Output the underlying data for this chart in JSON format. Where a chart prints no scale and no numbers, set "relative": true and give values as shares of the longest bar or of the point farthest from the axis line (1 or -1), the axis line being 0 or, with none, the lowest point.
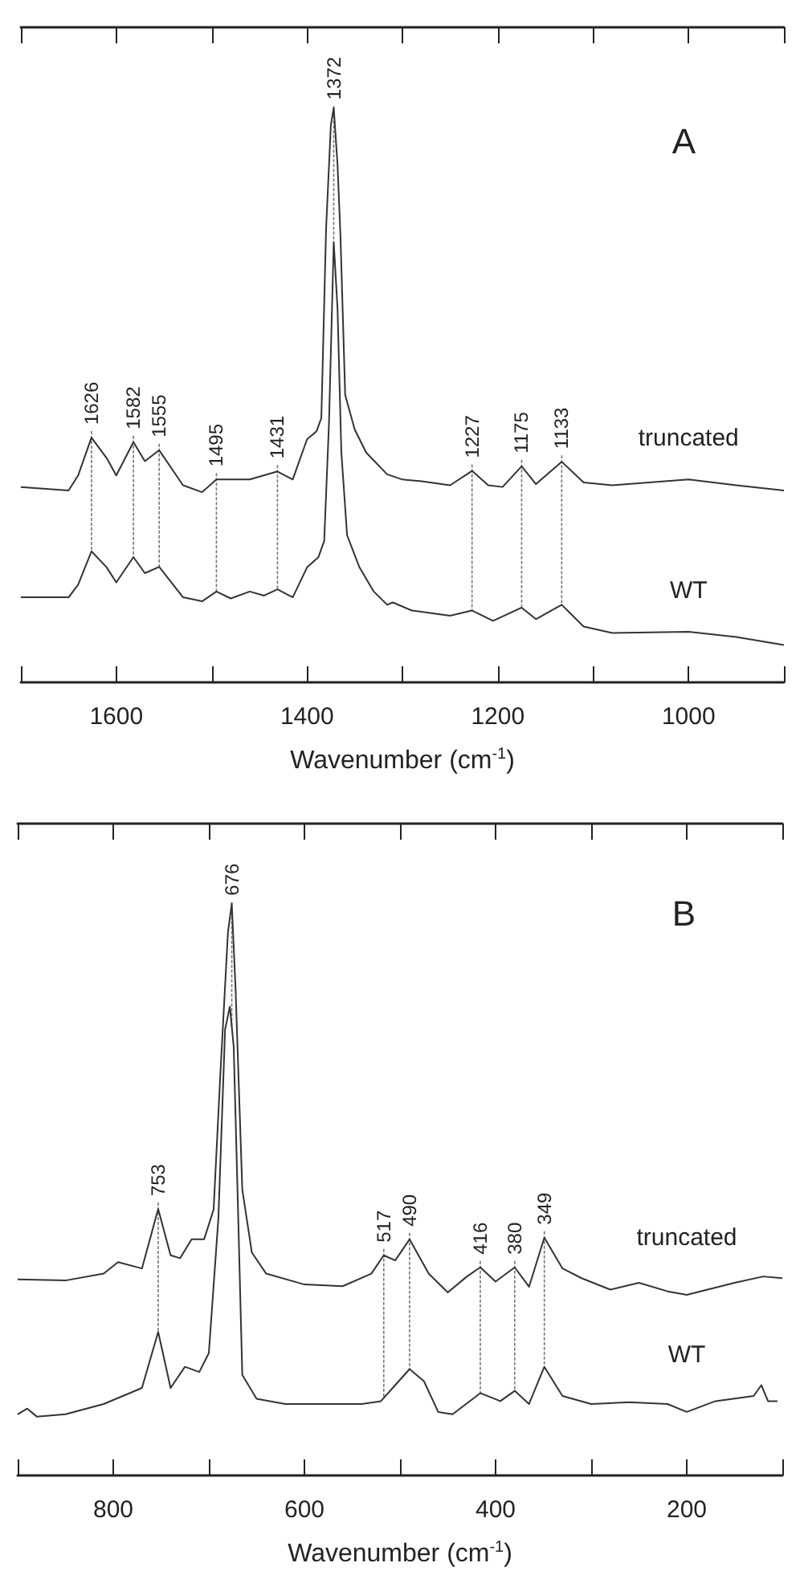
{
  "chart_data": [
    {
      "type": "line",
      "title": "A",
      "xlabel": "Wavenumber (cm$^{-1}$)",
      "relative": true,
      "tick_labels": "x",
      "xlim": [
        1700,
        900
      ],
      "xticks": [
        {
          "value": 1700,
          "label": null
        },
        1600,
        {
          "value": 1500,
          "label": null
        },
        1400,
        {
          "value": 1300,
          "label": null
        },
        1200,
        {
          "value": 1100,
          "label": null
        },
        1000,
        {
          "value": 900,
          "label": null
        }
      ],
      "series": [
        {
          "name": "truncated",
          "color": "#333333",
          "x": [
            1700,
            1650,
            1640,
            1626,
            1610,
            1600,
            1582,
            1570,
            1555,
            1530,
            1510,
            1495,
            1460,
            1431,
            1415,
            1400,
            1390,
            1385,
            1380,
            1375,
            1372,
            1368,
            1365,
            1360,
            1350,
            1338,
            1316,
            1300,
            1280,
            1250,
            1227,
            1210,
            1195,
            1175,
            1160,
            1133,
            1110,
            1080,
            1000,
            950,
            900
          ],
          "values": [
            0.34,
            0.334,
            0.36,
            0.426,
            0.39,
            0.36,
            0.418,
            0.385,
            0.404,
            0.343,
            0.331,
            0.353,
            0.353,
            0.367,
            0.353,
            0.423,
            0.437,
            0.46,
            0.79,
            0.97,
            1.0,
            0.9,
            0.78,
            0.5,
            0.44,
            0.4,
            0.362,
            0.353,
            0.35,
            0.343,
            0.368,
            0.343,
            0.34,
            0.376,
            0.345,
            0.384,
            0.348,
            0.343,
            0.353,
            0.343,
            0.334
          ]
        },
        {
          "name": "WT",
          "color": "#333333",
          "x": [
            1700,
            1650,
            1640,
            1626,
            1610,
            1600,
            1582,
            1570,
            1555,
            1530,
            1510,
            1495,
            1480,
            1460,
            1445,
            1431,
            1415,
            1400,
            1388,
            1382,
            1377,
            1372,
            1368,
            1364,
            1358,
            1345,
            1330,
            1316,
            1310,
            1290,
            1250,
            1227,
            1205,
            1175,
            1160,
            1133,
            1110,
            1080,
            1000,
            950,
            900
          ],
          "values": [
            0.148,
            0.148,
            0.17,
            0.228,
            0.2,
            0.174,
            0.218,
            0.19,
            0.201,
            0.148,
            0.141,
            0.158,
            0.146,
            0.158,
            0.151,
            0.162,
            0.148,
            0.2,
            0.218,
            0.246,
            0.45,
            0.766,
            0.65,
            0.4,
            0.256,
            0.2,
            0.158,
            0.135,
            0.139,
            0.125,
            0.116,
            0.125,
            0.107,
            0.13,
            0.11,
            0.135,
            0.097,
            0.086,
            0.088,
            0.079,
            0.065
          ]
        }
      ],
      "annotations": [
        {
          "text": "1626",
          "x": 1626,
          "y": 0.426
        },
        {
          "text": "1582",
          "x": 1582,
          "y": 0.418
        },
        {
          "text": "1555",
          "x": 1555,
          "y": 0.404
        },
        {
          "text": "1495",
          "x": 1495,
          "y": 0.353
        },
        {
          "text": "1431",
          "x": 1431,
          "y": 0.367
        },
        {
          "text": "1372",
          "x": 1372,
          "y": 1.0
        },
        {
          "text": "1227",
          "x": 1227,
          "y": 0.368
        },
        {
          "text": "1175",
          "x": 1175,
          "y": 0.376
        },
        {
          "text": "1133",
          "x": 1133,
          "y": 0.384
        }
      ]
    },
    {
      "type": "line",
      "title": "B",
      "xlabel": "Wavenumber (cm$^{-1}$)",
      "relative": true,
      "tick_labels": "x",
      "xlim": [
        900,
        100
      ],
      "xticks": [
        {
          "value": 900,
          "label": null
        },
        800,
        {
          "value": 700,
          "label": null
        },
        600,
        {
          "value": 500,
          "label": null
        },
        400,
        {
          "value": 300,
          "label": null
        },
        200,
        {
          "value": 100,
          "label": null
        }
      ],
      "series": [
        {
          "name": "truncated",
          "color": "#333333",
          "x": [
            900,
            850,
            810,
            795,
            770,
            753,
            740,
            730,
            718,
            705,
            695,
            688,
            680,
            676,
            672,
            668,
            665,
            655,
            640,
            600,
            560,
            530,
            517,
            505,
            490,
            470,
            450,
            430,
            416,
            400,
            380,
            365,
            349,
            330,
            310,
            280,
            250,
            220,
            200,
            150,
            120,
            100
          ],
          "values": [
            0.343,
            0.341,
            0.353,
            0.373,
            0.362,
            0.466,
            0.385,
            0.38,
            0.413,
            0.413,
            0.465,
            0.7,
            0.95,
            1.0,
            0.85,
            0.65,
            0.5,
            0.39,
            0.353,
            0.334,
            0.331,
            0.353,
            0.385,
            0.376,
            0.413,
            0.353,
            0.32,
            0.348,
            0.364,
            0.339,
            0.364,
            0.33,
            0.416,
            0.362,
            0.345,
            0.325,
            0.337,
            0.322,
            0.316,
            0.337,
            0.348,
            0.345
          ]
        },
        {
          "name": "WT",
          "color": "#333333",
          "x": [
            900,
            890,
            880,
            850,
            810,
            790,
            770,
            753,
            740,
            725,
            710,
            700,
            690,
            683,
            678,
            674,
            670,
            665,
            650,
            620,
            580,
            540,
            520,
            505,
            490,
            475,
            460,
            445,
            416,
            395,
            380,
            365,
            349,
            330,
            300,
            260,
            220,
            200,
            170,
            130,
            122,
            115,
            105
          ],
          "values": [
            0.107,
            0.117,
            0.103,
            0.107,
            0.125,
            0.139,
            0.153,
            0.251,
            0.153,
            0.19,
            0.181,
            0.214,
            0.45,
            0.78,
            0.82,
            0.75,
            0.5,
            0.176,
            0.134,
            0.125,
            0.125,
            0.125,
            0.13,
            0.158,
            0.186,
            0.165,
            0.111,
            0.107,
            0.144,
            0.13,
            0.148,
            0.125,
            0.19,
            0.139,
            0.125,
            0.128,
            0.125,
            0.111,
            0.13,
            0.139,
            0.158,
            0.13,
            0.13
          ]
        }
      ],
      "annotations": [
        {
          "text": "753",
          "x": 753,
          "y": 0.466
        },
        {
          "text": "676",
          "x": 676,
          "y": 1.0
        },
        {
          "text": "517",
          "x": 517,
          "y": 0.385
        },
        {
          "text": "490",
          "x": 490,
          "y": 0.413
        },
        {
          "text": "416",
          "x": 416,
          "y": 0.364
        },
        {
          "text": "380",
          "x": 380,
          "y": 0.364
        },
        {
          "text": "349",
          "x": 349,
          "y": 0.416
        }
      ]
    }
  ]
}
